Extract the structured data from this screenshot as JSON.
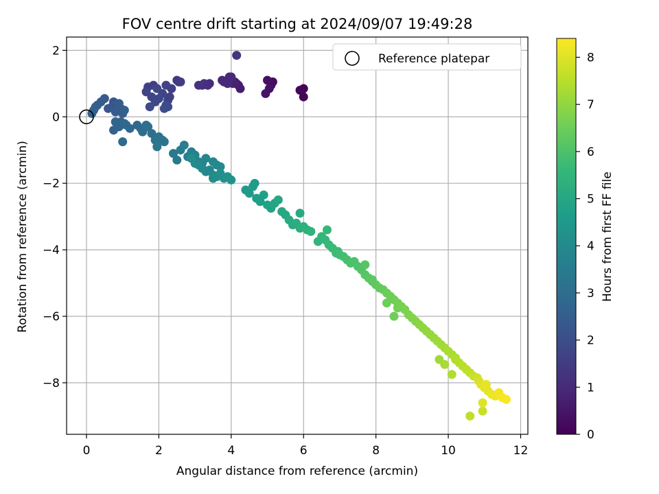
{
  "chart_data": {
    "type": "scatter",
    "title": "FOV centre drift starting at 2024/09/07 19:49:28",
    "xlabel": "Angular distance from reference (arcmin)",
    "ylabel": "Rotation from reference (arcmin)",
    "xlim": [
      -0.55,
      12.2
    ],
    "ylim": [
      -9.55,
      2.4
    ],
    "xticks": [
      0,
      2,
      4,
      6,
      8,
      10,
      12
    ],
    "yticks": [
      -8,
      -6,
      -4,
      -2,
      0,
      2
    ],
    "grid": true,
    "legend": {
      "position": "top-right",
      "entries": [
        "Reference platepar"
      ]
    },
    "reference_point": {
      "x": 0,
      "y": 0,
      "label": "Reference platepar"
    },
    "colorbar": {
      "label": "Hours from first FF file",
      "colormap": "viridis",
      "range": [
        0,
        8.4
      ],
      "ticks": [
        0,
        1,
        2,
        3,
        4,
        5,
        6,
        7,
        8
      ]
    },
    "colors": {
      "viridis": [
        "#440154",
        "#482878",
        "#3e4989",
        "#31688e",
        "#26828e",
        "#1f9e89",
        "#35b779",
        "#6ece58",
        "#b5de2b",
        "#fde725"
      ],
      "grid": "#b0b0b0"
    },
    "x": [
      6.0,
      5.95,
      6.0,
      5.9,
      5.1,
      5.15,
      5.0,
      5.05,
      4.95,
      4.2,
      4.25,
      4.15,
      4.1,
      4.05,
      3.95,
      3.8,
      3.75,
      3.9,
      4.0,
      3.4,
      3.35,
      3.2,
      3.25,
      3.1,
      4.15,
      2.5,
      2.55,
      2.6,
      2.35,
      2.3,
      2.25,
      2.2,
      2.1,
      1.95,
      2.0,
      2.2,
      2.25,
      2.15,
      1.85,
      1.7,
      1.65,
      1.75,
      1.8,
      1.9,
      0.7,
      0.75,
      0.85,
      0.95,
      0.5,
      0.4,
      0.3,
      0.25,
      0.2,
      0.15,
      0.6,
      0.8,
      0.9,
      1.0,
      1.05,
      0.95,
      0.75,
      0.9,
      1.2,
      1.1,
      1.0,
      0.8,
      1.4,
      1.5,
      1.55,
      1.65,
      1.7,
      1.8,
      1.9,
      2.0,
      2.1,
      2.15,
      1.95,
      1.05,
      2.4,
      2.5,
      2.6,
      2.7,
      2.8,
      2.9,
      3.0,
      3.1,
      3.2,
      3.3,
      3.5,
      3.6,
      3.7,
      3.4,
      3.3,
      3.2,
      3.1,
      3.0,
      2.9,
      3.5,
      3.6,
      3.7,
      3.8,
      3.9,
      4.0,
      3.5,
      4.4,
      4.5,
      4.6,
      4.7,
      4.8,
      4.9,
      5.0,
      5.1,
      5.2,
      4.65,
      5.3,
      5.4,
      5.5,
      5.6,
      5.7,
      5.8,
      5.9,
      6.0,
      6.1,
      6.2,
      5.9,
      6.4,
      6.5,
      6.6,
      6.7,
      6.8,
      6.9,
      7.0,
      7.1,
      7.2,
      7.3,
      7.4,
      7.5,
      6.65,
      6.95,
      7.6,
      7.7,
      7.8,
      7.9,
      8.0,
      8.1,
      8.2,
      8.3,
      8.4,
      8.5,
      7.7,
      7.9,
      8.6,
      8.7,
      8.8,
      8.9,
      9.0,
      9.1,
      9.2,
      9.3,
      9.4,
      9.5,
      9.6,
      8.3,
      8.6,
      8.5,
      9.7,
      9.8,
      9.9,
      10.0,
      10.1,
      10.2,
      10.3,
      10.4,
      10.5,
      10.6,
      10.7,
      10.8,
      9.9,
      10.1,
      10.85,
      10.9,
      11.0,
      11.1,
      11.2,
      11.3,
      11.4,
      11.5,
      11.6,
      10.95,
      11.05,
      10.6,
      10.95,
      10.2,
      9.75
    ],
    "y": [
      0.85,
      0.8,
      0.6,
      0.8,
      0.95,
      1.05,
      1.1,
      0.85,
      0.7,
      0.95,
      0.85,
      1.0,
      1.05,
      1.0,
      1.2,
      1.05,
      1.1,
      1.0,
      1.2,
      1.0,
      0.95,
      0.95,
      1.0,
      0.95,
      1.85,
      1.1,
      1.05,
      1.05,
      0.85,
      0.6,
      0.5,
      0.95,
      0.7,
      0.85,
      0.55,
      0.35,
      0.3,
      0.25,
      0.95,
      0.9,
      0.75,
      0.3,
      0.6,
      0.45,
      0.3,
      0.45,
      0.35,
      0.25,
      0.55,
      0.45,
      0.35,
      0.3,
      0.2,
      0.1,
      0.25,
      0.15,
      0.4,
      0.1,
      0.2,
      -0.15,
      -0.4,
      -0.3,
      -0.35,
      -0.25,
      -0.75,
      -0.15,
      -0.25,
      -0.35,
      -0.45,
      -0.25,
      -0.3,
      -0.5,
      -0.7,
      -0.6,
      -0.7,
      -0.75,
      -0.9,
      -0.2,
      -1.1,
      -1.3,
      -1.0,
      -0.85,
      -1.2,
      -1.05,
      -1.15,
      -1.35,
      -1.4,
      -1.25,
      -1.35,
      -1.45,
      -1.5,
      -1.6,
      -1.65,
      -1.55,
      -1.45,
      -1.4,
      -1.25,
      -1.75,
      -1.8,
      -1.7,
      -1.85,
      -1.8,
      -1.9,
      -1.85,
      -2.2,
      -2.3,
      -2.1,
      -2.45,
      -2.55,
      -2.35,
      -2.65,
      -2.75,
      -2.6,
      -2.0,
      -2.5,
      -2.85,
      -2.95,
      -3.1,
      -3.25,
      -3.2,
      -3.35,
      -3.3,
      -3.4,
      -3.45,
      -2.9,
      -3.75,
      -3.6,
      -3.7,
      -3.85,
      -3.95,
      -4.1,
      -4.15,
      -4.2,
      -4.3,
      -4.4,
      -4.35,
      -4.5,
      -3.4,
      -4.05,
      -4.6,
      -4.75,
      -4.85,
      -4.9,
      -5.05,
      -5.15,
      -5.2,
      -5.3,
      -5.4,
      -5.5,
      -4.45,
      -4.95,
      -5.6,
      -5.7,
      -5.8,
      -5.95,
      -6.05,
      -6.15,
      -6.25,
      -6.35,
      -6.45,
      -6.55,
      -6.65,
      -5.6,
      -5.75,
      -6.0,
      -6.75,
      -6.85,
      -6.95,
      -7.05,
      -7.15,
      -7.3,
      -7.4,
      -7.5,
      -7.6,
      -7.7,
      -7.8,
      -7.85,
      -7.45,
      -7.75,
      -7.95,
      -8.05,
      -8.15,
      -8.25,
      -8.35,
      -8.4,
      -8.3,
      -8.45,
      -8.5,
      -8.6,
      -8.05,
      -9.0,
      -8.85,
      -7.25,
      -7.3
    ],
    "hours": [
      0.0,
      0.05,
      0.1,
      0.15,
      0.25,
      0.3,
      0.35,
      0.4,
      0.45,
      0.6,
      0.65,
      0.7,
      0.75,
      0.8,
      0.85,
      0.9,
      0.95,
      1.0,
      1.0,
      1.05,
      1.1,
      1.15,
      1.2,
      1.25,
      1.3,
      1.4,
      1.45,
      1.5,
      1.55,
      1.6,
      1.65,
      1.7,
      1.75,
      1.8,
      1.85,
      1.9,
      1.95,
      2.0,
      1.6,
      1.65,
      1.7,
      1.9,
      1.75,
      1.8,
      2.2,
      2.25,
      2.3,
      2.35,
      2.4,
      2.45,
      2.5,
      2.55,
      2.6,
      2.65,
      2.3,
      2.4,
      2.45,
      2.5,
      2.55,
      2.6,
      2.65,
      2.7,
      2.75,
      2.8,
      2.85,
      2.7,
      2.85,
      2.9,
      2.95,
      3.0,
      3.05,
      3.1,
      3.15,
      3.2,
      3.25,
      3.3,
      3.35,
      2.8,
      3.4,
      3.45,
      3.5,
      3.55,
      3.6,
      3.65,
      3.7,
      3.75,
      3.8,
      3.85,
      3.9,
      3.95,
      4.0,
      3.85,
      3.9,
      3.95,
      4.0,
      4.05,
      4.1,
      4.05,
      4.1,
      4.15,
      4.2,
      4.25,
      4.3,
      4.1,
      4.5,
      4.55,
      4.6,
      4.65,
      4.7,
      4.75,
      4.8,
      4.85,
      4.9,
      4.6,
      4.95,
      5.0,
      5.05,
      5.1,
      5.15,
      5.2,
      5.25,
      5.3,
      5.35,
      5.4,
      5.1,
      5.5,
      5.55,
      5.6,
      5.65,
      5.7,
      5.75,
      5.8,
      5.85,
      5.9,
      5.95,
      6.0,
      6.05,
      5.6,
      5.7,
      6.1,
      6.15,
      6.2,
      6.25,
      6.3,
      6.35,
      6.4,
      6.45,
      6.5,
      6.55,
      6.15,
      6.25,
      6.6,
      6.65,
      6.7,
      6.75,
      6.8,
      6.85,
      6.9,
      6.95,
      7.0,
      7.05,
      7.1,
      6.5,
      6.6,
      6.55,
      7.15,
      7.2,
      7.25,
      7.3,
      7.35,
      7.4,
      7.45,
      7.5,
      7.55,
      7.6,
      7.7,
      7.8,
      7.3,
      7.4,
      7.9,
      8.0,
      8.05,
      8.1,
      8.15,
      8.2,
      8.25,
      8.3,
      8.35,
      8.0,
      8.1,
      7.6,
      7.7,
      7.4,
      7.2
    ]
  }
}
